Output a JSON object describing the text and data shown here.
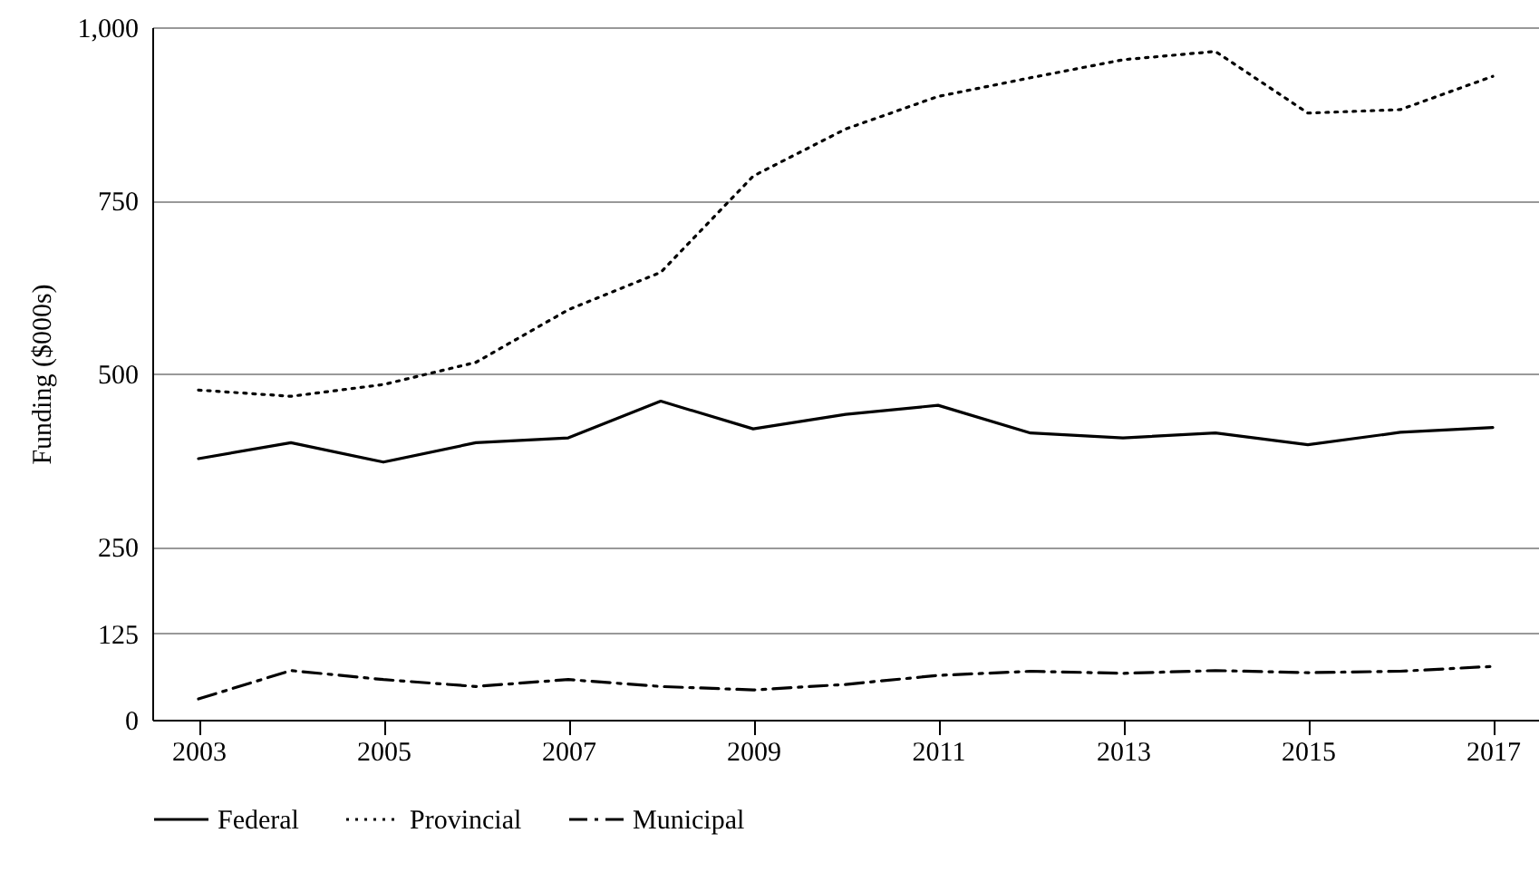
{
  "chart_data": {
    "type": "line",
    "ylabel": "Funding ($000s)",
    "x": [
      2003,
      2004,
      2005,
      2006,
      2007,
      2008,
      2009,
      2010,
      2011,
      2012,
      2013,
      2014,
      2015,
      2016,
      2017
    ],
    "series": [
      {
        "name": "Federal",
        "color": "#000000",
        "line_style": "solid",
        "values": [
          377,
          400,
          372,
          400,
          407,
          460,
          420,
          441,
          454,
          414,
          407,
          414,
          397,
          415,
          422
        ]
      },
      {
        "name": "Provincial",
        "color": "#000000",
        "line_style": "dotted",
        "values": [
          476,
          467,
          484,
          516,
          592,
          646,
          785,
          853,
          900,
          927,
          953,
          965,
          876,
          881,
          929
        ]
      },
      {
        "name": "Municipal",
        "color": "#000000",
        "line_style": "dashdot",
        "values": [
          30,
          71,
          58,
          48,
          58,
          48,
          43,
          51,
          64,
          70,
          67,
          71,
          68,
          70,
          77
        ]
      }
    ],
    "xlim": [
      2002.5,
      2017.5
    ],
    "xticks": [
      2003,
      2005,
      2007,
      2009,
      2011,
      2013,
      2015,
      2017
    ],
    "ylim": [
      0,
      1000
    ],
    "yticks": [
      0,
      125,
      250,
      500,
      750,
      {
        "value": 1000,
        "label": "1,000"
      }
    ],
    "grid": "y",
    "legend": "bottom",
    "marker": "none"
  }
}
